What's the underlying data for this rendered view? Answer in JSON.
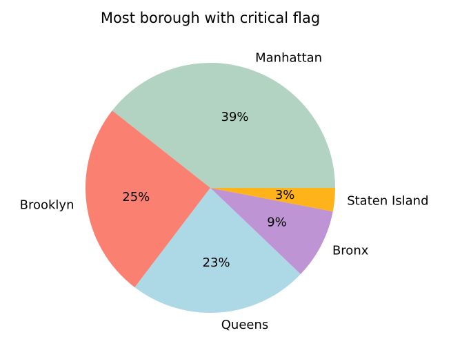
{
  "chart_data": {
    "type": "pie",
    "title": "Most borough with critical flag",
    "categories": [
      "Manhattan",
      "Brooklyn",
      "Queens",
      "Bronx",
      "Staten Island"
    ],
    "values": [
      39,
      25,
      23,
      9,
      3
    ],
    "value_labels": [
      "39%",
      "25%",
      "23%",
      "9%",
      "3%"
    ],
    "colors": [
      "#b2d3c2",
      "#fa8072",
      "#add8e6",
      "#bf94d4",
      "#ffb31a"
    ]
  }
}
